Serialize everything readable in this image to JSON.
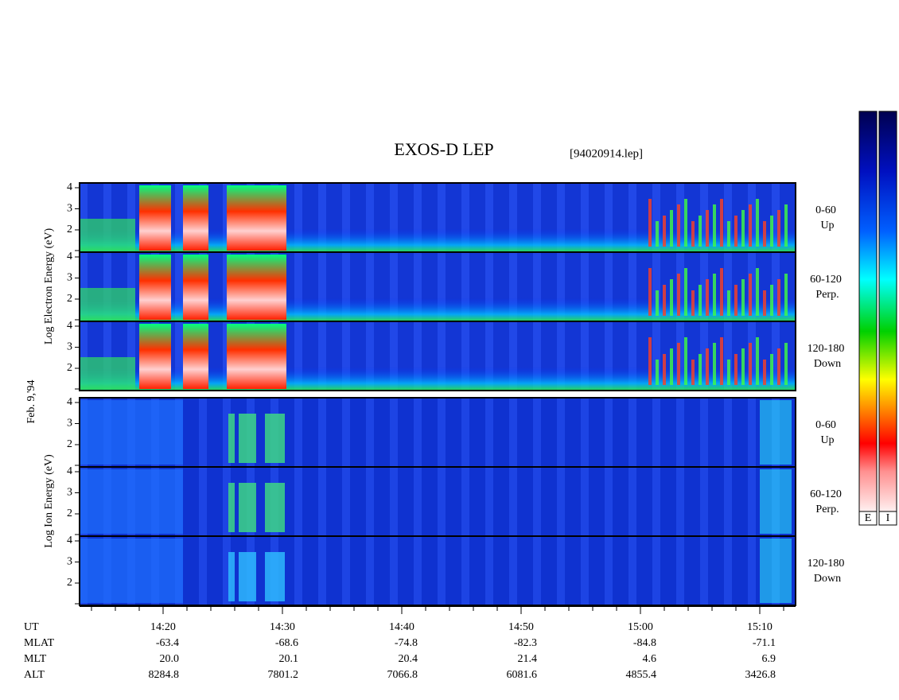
{
  "header": {
    "title": "EXOS-D LEP",
    "file": "[94020914.lep]"
  },
  "y_labels": {
    "electron": "Log  Electron  Energy (eV)",
    "ion": "Log  Ion  Energy (eV)",
    "date": "Feb. 9,'94"
  },
  "panels": [
    {
      "yticks": [
        4,
        3,
        2
      ],
      "angle": "0-60",
      "direction": "Up"
    },
    {
      "yticks": [
        4,
        3,
        2
      ],
      "angle": "60-120",
      "direction": "Perp."
    },
    {
      "yticks": [
        4,
        3,
        2
      ],
      "angle": "120-180",
      "direction": "Down"
    },
    {
      "yticks": [
        4,
        3,
        2
      ],
      "angle": "0-60",
      "direction": "Up"
    },
    {
      "yticks": [
        4,
        3,
        2
      ],
      "angle": "60-120",
      "direction": "Perp."
    },
    {
      "yticks": [
        4,
        3,
        2
      ],
      "angle": "120-180",
      "direction": "Down"
    }
  ],
  "orbit": {
    "rows": [
      {
        "label": "UT",
        "values": [
          "14:20",
          "14:30",
          "14:40",
          "14:50",
          "15:00",
          "15:10"
        ]
      },
      {
        "label": "MLAT",
        "values": [
          "-63.4",
          "-68.6",
          "-74.8",
          "-82.3",
          "-84.8",
          "-71.1"
        ]
      },
      {
        "label": "MLT",
        "values": [
          "20.0",
          "20.1",
          "20.4",
          "21.4",
          "4.6",
          "6.9"
        ]
      },
      {
        "label": "ALT",
        "values": [
          "8284.8",
          "7801.2",
          "7066.8",
          "6081.6",
          "4855.4",
          "3426.8"
        ]
      }
    ]
  },
  "colorbars": [
    "E",
    "I"
  ]
}
